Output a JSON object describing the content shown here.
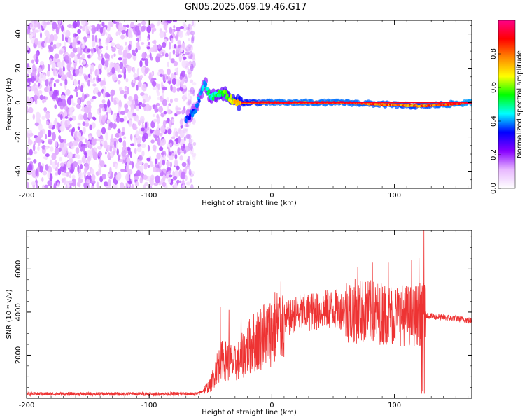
{
  "title": "GN05.2025.069.19.46.G17",
  "chart_data": [
    {
      "type": "heatmap",
      "name": "spectrogram",
      "xlabel": "Height of straight line (km)",
      "ylabel": "Frequency (Hz)",
      "xlim": [
        -200,
        163
      ],
      "ylim": [
        -50,
        48
      ],
      "xticks": [
        -200,
        -100,
        0,
        100
      ],
      "yticks": [
        -40,
        -20,
        0,
        20,
        40
      ],
      "colorbar": {
        "label": "Normalized spectral amplitude",
        "range": [
          0,
          1
        ],
        "ticks": [
          0.0,
          0.2,
          0.4,
          0.6,
          0.8
        ],
        "colors": [
          "#ffffff",
          "#e8b8ff",
          "#8800ff",
          "#0000ff",
          "#00ffff",
          "#00ff00",
          "#ffff00",
          "#ff8800",
          "#ff0000",
          "#ff0088"
        ]
      },
      "noise_region": {
        "x_from": -200,
        "x_to": -63,
        "freq_from": -50,
        "freq_to": 48,
        "typical_amplitude": 0.1
      },
      "signal_center_hz": 0,
      "signal_track": [
        {
          "x": -70,
          "freq": -10,
          "amp": 0.35
        },
        {
          "x": -62,
          "freq": -4,
          "amp": 0.4
        },
        {
          "x": -55,
          "freq": 12,
          "amp": 0.45
        },
        {
          "x": -50,
          "freq": 3,
          "amp": 0.5
        },
        {
          "x": -40,
          "freq": 6,
          "amp": 0.55
        },
        {
          "x": -30,
          "freq": 0,
          "amp": 0.7
        },
        {
          "x": 0,
          "freq": 0,
          "amp": 0.85
        },
        {
          "x": 60,
          "freq": 0,
          "amp": 0.85
        },
        {
          "x": 120,
          "freq": -2,
          "amp": 0.8
        },
        {
          "x": 163,
          "freq": 0,
          "amp": 0.9
        }
      ]
    },
    {
      "type": "line",
      "name": "snr",
      "xlabel": "Height of straight line (km)",
      "ylabel": "SNR (10 * v/v)",
      "xlim": [
        -200,
        163
      ],
      "ylim": [
        0,
        7800
      ],
      "xticks": [
        -200,
        -100,
        0,
        100
      ],
      "yticks": [
        2000,
        4000,
        6000
      ],
      "color": "#ee3333",
      "series": [
        {
          "name": "SNR",
          "x": [
            -200,
            -150,
            -100,
            -60,
            -50,
            -45,
            -40,
            -35,
            -30,
            -25,
            -20,
            -15,
            -10,
            -5,
            0,
            10,
            20,
            30,
            40,
            50,
            60,
            70,
            80,
            90,
            100,
            110,
            115,
            120,
            124,
            130,
            140,
            150,
            163
          ],
          "values": [
            200,
            200,
            200,
            200,
            600,
            1400,
            1800,
            1700,
            1600,
            1900,
            2300,
            2600,
            2800,
            3000,
            3200,
            3600,
            3900,
            4000,
            4100,
            4150,
            4100,
            4050,
            4000,
            3950,
            3900,
            3850,
            3800,
            3900,
            3900,
            3800,
            3750,
            3700,
            3600
          ],
          "spikes": [
            {
              "x": -42,
              "value": 4250
            },
            {
              "x": -35,
              "value": 4100
            },
            {
              "x": -25,
              "value": 4400
            },
            {
              "x": 70,
              "value": 6100
            },
            {
              "x": 82,
              "value": 6300
            },
            {
              "x": 95,
              "value": 6300
            },
            {
              "x": 114,
              "value": 6400
            },
            {
              "x": 120,
              "value": 6500
            },
            {
              "x": 124,
              "value": 7800
            }
          ]
        }
      ]
    }
  ]
}
